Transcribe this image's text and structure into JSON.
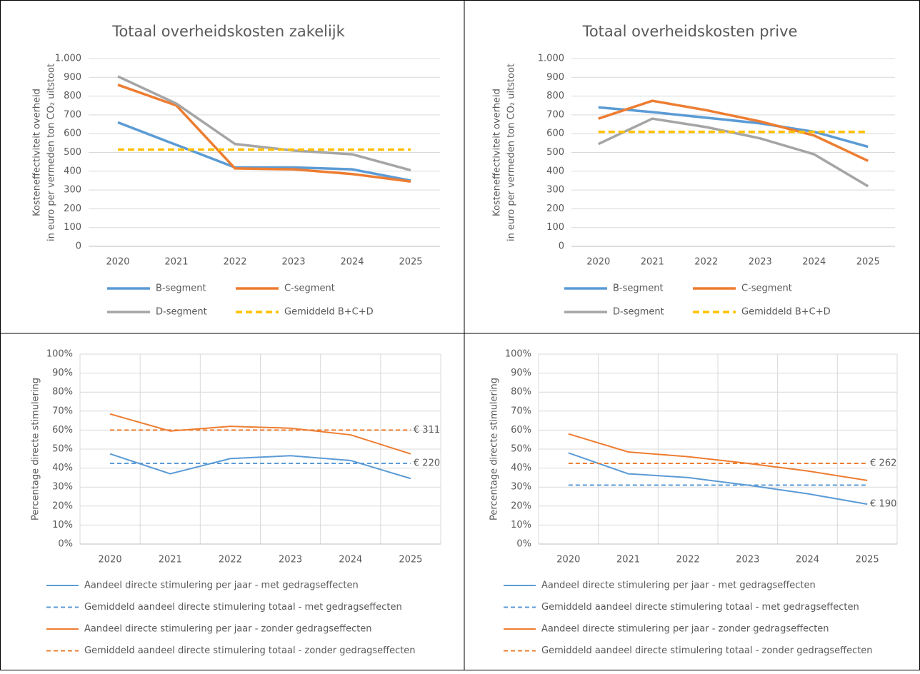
{
  "chart_data": [
    {
      "type": "line",
      "title": "Totaal overheidskosten zakelijk",
      "ylabel": [
        "Kosteneffectiviteit overheid",
        "in euro per vermeden ton CO₂ uitstoot"
      ],
      "categories": [
        "2020",
        "2021",
        "2022",
        "2023",
        "2024",
        "2025"
      ],
      "ylim": [
        0,
        1000
      ],
      "yticks": [
        0,
        100,
        200,
        300,
        400,
        500,
        600,
        700,
        800,
        900,
        {
          "value": 1000,
          "label": "1.000"
        }
      ],
      "grid": true,
      "xgrid": false,
      "legend": "bottom",
      "legend_columns": 2,
      "series": [
        {
          "name": "B-segment",
          "color": "#5b9bd5",
          "style": "solid",
          "values": [
            660,
            540,
            420,
            420,
            410,
            350
          ]
        },
        {
          "name": "C-segment",
          "color": "#ed7d31",
          "style": "solid",
          "values": [
            860,
            750,
            415,
            410,
            385,
            345
          ]
        },
        {
          "name": "D-segment",
          "color": "#a5a5a5",
          "style": "solid",
          "values": [
            905,
            760,
            545,
            510,
            490,
            405
          ]
        },
        {
          "name": "Gemiddeld B+C+D",
          "color": "#ffc000",
          "style": "dashed",
          "values": [
            515,
            515,
            515,
            515,
            515,
            515
          ]
        }
      ]
    },
    {
      "type": "line",
      "title": "Totaal overheidskosten prive",
      "ylabel": [
        "Kosteneffectiviteit overheid",
        "in euro per vermeden ton CO₂ uitstoot"
      ],
      "categories": [
        "2020",
        "2021",
        "2022",
        "2023",
        "2024",
        "2025"
      ],
      "ylim": [
        0,
        1000
      ],
      "yticks": [
        0,
        100,
        200,
        300,
        400,
        500,
        600,
        700,
        800,
        900,
        {
          "value": 1000,
          "label": "1.000"
        }
      ],
      "grid": true,
      "xgrid": false,
      "legend": "bottom",
      "legend_columns": 2,
      "series": [
        {
          "name": "B-segment",
          "color": "#5b9bd5",
          "style": "solid",
          "values": [
            740,
            715,
            685,
            655,
            610,
            530
          ]
        },
        {
          "name": "C-segment",
          "color": "#ed7d31",
          "style": "solid",
          "values": [
            680,
            775,
            725,
            665,
            590,
            455
          ]
        },
        {
          "name": "D-segment",
          "color": "#a5a5a5",
          "style": "solid",
          "values": [
            545,
            680,
            635,
            575,
            490,
            320
          ]
        },
        {
          "name": "Gemiddeld B+C+D",
          "color": "#ffc000",
          "style": "dashed",
          "values": [
            610,
            610,
            610,
            610,
            610,
            610
          ]
        }
      ]
    },
    {
      "type": "line",
      "ylabel": [
        "Percentage directe stimulering"
      ],
      "categories": [
        "2020",
        "2021",
        "2022",
        "2023",
        "2024",
        "2025"
      ],
      "ylim": [
        0,
        100
      ],
      "yticks": [
        {
          "value": 0,
          "label": "0%"
        },
        {
          "value": 10,
          "label": "10%"
        },
        {
          "value": 20,
          "label": "20%"
        },
        {
          "value": 30,
          "label": "30%"
        },
        {
          "value": 40,
          "label": "40%"
        },
        {
          "value": 50,
          "label": "50%"
        },
        {
          "value": 60,
          "label": "60%"
        },
        {
          "value": 70,
          "label": "70%"
        },
        {
          "value": 80,
          "label": "80%"
        },
        {
          "value": 90,
          "label": "90%"
        },
        {
          "value": 100,
          "label": "100%"
        }
      ],
      "grid": true,
      "xgrid": true,
      "legend": "bottom",
      "legend_columns": 1,
      "series": [
        {
          "name": "Aandeel directe stimulering per jaar - met gedragseffecten",
          "color": "#5b9bd5",
          "style": "solid",
          "values": [
            47.5,
            37,
            45,
            46.5,
            44,
            34.5
          ]
        },
        {
          "name": "Gemiddeld aandeel directe stimulering totaal - met gedragseffecten",
          "color": "#5b9bd5",
          "style": "dashed",
          "values": [
            42.5,
            42.5,
            42.5,
            42.5,
            42.5,
            42.5
          ],
          "end_label": "€ 220"
        },
        {
          "name": "Aandeel directe stimulering per jaar - zonder gedragseffecten",
          "color": "#ed7d31",
          "style": "solid",
          "values": [
            68.5,
            59.5,
            62,
            61,
            57.5,
            47.5
          ]
        },
        {
          "name": "Gemiddeld aandeel directe stimulering totaal - zonder gedragseffecten",
          "color": "#ed7d31",
          "style": "dashed",
          "values": [
            60,
            60,
            60,
            60,
            60,
            60
          ],
          "end_label": "€ 311"
        }
      ]
    },
    {
      "type": "line",
      "ylabel": [
        "Percentage directe stimulering"
      ],
      "categories": [
        "2020",
        "2021",
        "2022",
        "2023",
        "2024",
        "2025"
      ],
      "ylim": [
        0,
        100
      ],
      "yticks": [
        {
          "value": 0,
          "label": "0%"
        },
        {
          "value": 10,
          "label": "10%"
        },
        {
          "value": 20,
          "label": "20%"
        },
        {
          "value": 30,
          "label": "30%"
        },
        {
          "value": 40,
          "label": "40%"
        },
        {
          "value": 50,
          "label": "50%"
        },
        {
          "value": 60,
          "label": "60%"
        },
        {
          "value": 70,
          "label": "70%"
        },
        {
          "value": 80,
          "label": "80%"
        },
        {
          "value": 90,
          "label": "90%"
        },
        {
          "value": 100,
          "label": "100%"
        }
      ],
      "grid": true,
      "xgrid": true,
      "legend": "bottom",
      "legend_columns": 1,
      "series": [
        {
          "name": "Aandeel directe stimulering per jaar - met gedragseffecten",
          "color": "#5b9bd5",
          "style": "solid",
          "values": [
            48,
            37,
            35,
            31,
            26.5,
            21
          ],
          "end_label": "€ 190"
        },
        {
          "name": "Gemiddeld aandeel directe stimulering totaal - met gedragseffecten",
          "color": "#5b9bd5",
          "style": "dashed",
          "values": [
            31,
            31,
            31,
            31,
            31,
            31
          ]
        },
        {
          "name": "Aandeel directe stimulering per jaar - zonder gedragseffecten",
          "color": "#ed7d31",
          "style": "solid",
          "values": [
            58,
            48.5,
            46,
            42.5,
            38.5,
            33.5
          ]
        },
        {
          "name": "Gemiddeld aandeel directe stimulering totaal - zonder gedragseffecten",
          "color": "#ed7d31",
          "style": "dashed",
          "values": [
            42.5,
            42.5,
            42.5,
            42.5,
            42.5,
            42.5
          ],
          "end_label": "€ 262"
        }
      ]
    }
  ]
}
